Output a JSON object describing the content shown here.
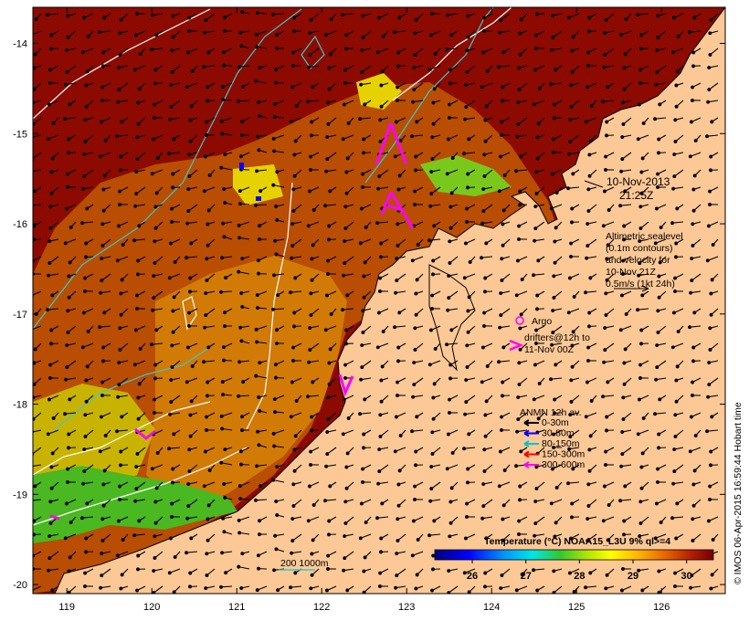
{
  "map": {
    "date_line": "10-Nov-2013",
    "time_line": "21:25Z",
    "longitude_ticks": [
      "119",
      "120",
      "121",
      "122",
      "123",
      "124",
      "125",
      "126"
    ],
    "latitude_ticks": [
      "-14",
      "-15",
      "-16",
      "-17",
      "-18",
      "-19",
      "-20"
    ],
    "lon_range": [
      118.6,
      126.75
    ],
    "lat_range": [
      -20.1,
      -13.6
    ]
  },
  "altimetry_note": {
    "line1": "Altimetric sealevel",
    "line2": "(0.1m contours)",
    "line3": "and velocity for",
    "line4": "10-Nov 21Z",
    "line5": "0.5m/s (1kt 24h)"
  },
  "argo_label": "Argo",
  "drifters": {
    "line1": "drifters@12h to",
    "line2": "11-Nov 00Z"
  },
  "anmn": {
    "title": "ANMN 12h av.",
    "items": [
      {
        "label": "0-30m",
        "color": "#000000"
      },
      {
        "label": "30-80m",
        "color": "#0000ff"
      },
      {
        "label": "80-150m",
        "color": "#00c8c8"
      },
      {
        "label": "150-300m",
        "color": "#ff0000"
      },
      {
        "label": "300-600m",
        "color": "#ff00ff"
      }
    ]
  },
  "depth_legend": "200  1000m",
  "colorbar": {
    "title": "Temperature (°C) NOAA15_L3U 9% ql>=4",
    "ticks": [
      "26",
      "27",
      "28",
      "29",
      "30"
    ],
    "min": 25.3,
    "max": 30.5
  },
  "credit": "© IMOS 06-Apr-2015 16:59:44 Hobart time",
  "colors": {
    "land": "#fcc896",
    "warm": "#8c0a00",
    "mid": "#c05a00",
    "accent_arrow": "#ff00ff",
    "contour_sealevel": "#ffffff",
    "contour_depth": "#3cc8c8"
  }
}
